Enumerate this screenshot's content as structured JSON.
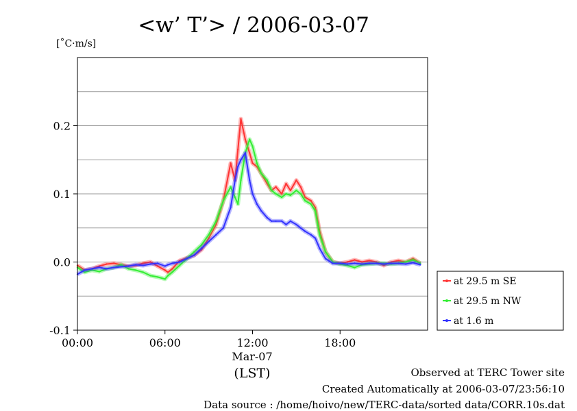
{
  "chart_data": {
    "type": "line",
    "title": "<w’ T’> / 2006-03-07",
    "ylabel_unit": "[˚C·m/s]",
    "xlabel": "(LST)",
    "x_date_label": "Mar-07",
    "xlim": [
      0,
      24
    ],
    "ylim": [
      -0.1,
      0.3
    ],
    "x_ticks": [
      0,
      6,
      12,
      18
    ],
    "x_tick_labels": [
      "00:00",
      "06:00",
      "12:00",
      "18:00"
    ],
    "y_ticks": [
      -0.1,
      0.0,
      0.1,
      0.2
    ],
    "y_tick_labels": [
      "-0.1",
      "0.0",
      "0.1",
      "0.2"
    ],
    "grid": true,
    "legend_position": "right",
    "series": [
      {
        "name": "at 29.5 m SE",
        "color": "#ff3333",
        "x": [
          0.0,
          0.5,
          1.0,
          1.5,
          2.0,
          2.5,
          3.0,
          3.5,
          4.0,
          4.5,
          5.0,
          5.5,
          6.0,
          6.2,
          6.5,
          7.0,
          7.5,
          8.0,
          8.5,
          9.0,
          9.5,
          10.0,
          10.5,
          10.8,
          11.0,
          11.2,
          11.5,
          11.8,
          12.0,
          12.3,
          12.6,
          13.0,
          13.3,
          13.6,
          14.0,
          14.3,
          14.6,
          15.0,
          15.3,
          15.6,
          16.0,
          16.3,
          16.6,
          17.0,
          17.5,
          18.0,
          18.5,
          19.0,
          19.5,
          20.0,
          20.5,
          21.0,
          21.5,
          22.0,
          22.5,
          23.0,
          23.5
        ],
        "values": [
          -0.005,
          -0.012,
          -0.01,
          -0.006,
          -0.003,
          -0.002,
          -0.004,
          -0.006,
          -0.005,
          -0.002,
          0.0,
          -0.006,
          -0.012,
          -0.015,
          -0.01,
          0.002,
          0.006,
          0.01,
          0.018,
          0.035,
          0.055,
          0.09,
          0.145,
          0.12,
          0.165,
          0.21,
          0.18,
          0.16,
          0.145,
          0.14,
          0.13,
          0.115,
          0.105,
          0.11,
          0.1,
          0.115,
          0.105,
          0.12,
          0.11,
          0.095,
          0.09,
          0.08,
          0.045,
          0.015,
          0.0,
          -0.002,
          0.0,
          0.003,
          0.0,
          0.002,
          0.0,
          -0.005,
          0.0,
          0.002,
          0.0,
          0.005,
          -0.002
        ]
      },
      {
        "name": "at 29.5 m NW",
        "color": "#33ee33",
        "x": [
          0.0,
          0.5,
          1.0,
          1.5,
          2.0,
          2.5,
          3.0,
          3.5,
          4.0,
          4.5,
          5.0,
          5.5,
          6.0,
          6.2,
          6.5,
          7.0,
          7.5,
          8.0,
          8.5,
          9.0,
          9.5,
          10.0,
          10.5,
          10.8,
          11.0,
          11.2,
          11.5,
          11.8,
          12.0,
          12.3,
          12.6,
          13.0,
          13.3,
          13.6,
          14.0,
          14.3,
          14.6,
          15.0,
          15.3,
          15.6,
          16.0,
          16.3,
          16.6,
          17.0,
          17.5,
          18.0,
          18.5,
          19.0,
          19.5,
          20.0,
          20.5,
          21.0,
          21.5,
          22.0,
          22.5,
          23.0,
          23.5
        ],
        "values": [
          -0.008,
          -0.015,
          -0.012,
          -0.014,
          -0.01,
          -0.008,
          -0.004,
          -0.01,
          -0.012,
          -0.015,
          -0.02,
          -0.022,
          -0.025,
          -0.02,
          -0.015,
          -0.005,
          0.005,
          0.015,
          0.025,
          0.04,
          0.06,
          0.09,
          0.11,
          0.095,
          0.085,
          0.12,
          0.16,
          0.18,
          0.17,
          0.145,
          0.13,
          0.12,
          0.105,
          0.1,
          0.095,
          0.1,
          0.098,
          0.105,
          0.1,
          0.09,
          0.085,
          0.075,
          0.04,
          0.015,
          0.0,
          -0.003,
          -0.005,
          -0.008,
          -0.004,
          -0.003,
          -0.002,
          -0.002,
          -0.003,
          -0.002,
          0.0,
          0.003,
          -0.002
        ]
      },
      {
        "name": "at 1.6 m",
        "color": "#3333ff",
        "x": [
          0.0,
          0.5,
          1.0,
          1.5,
          2.0,
          2.5,
          3.0,
          3.5,
          4.0,
          4.5,
          5.0,
          5.5,
          6.0,
          6.2,
          6.5,
          7.0,
          7.5,
          8.0,
          8.5,
          9.0,
          9.5,
          10.0,
          10.5,
          10.8,
          11.0,
          11.2,
          11.5,
          11.8,
          12.0,
          12.3,
          12.6,
          13.0,
          13.3,
          13.6,
          14.0,
          14.3,
          14.6,
          15.0,
          15.3,
          15.6,
          16.0,
          16.3,
          16.6,
          17.0,
          17.5,
          18.0,
          18.5,
          19.0,
          19.5,
          20.0,
          20.5,
          21.0,
          21.5,
          22.0,
          22.5,
          23.0,
          23.5
        ],
        "values": [
          -0.018,
          -0.012,
          -0.01,
          -0.008,
          -0.01,
          -0.008,
          -0.007,
          -0.006,
          -0.004,
          -0.005,
          -0.003,
          -0.002,
          -0.006,
          -0.004,
          -0.002,
          0.0,
          0.005,
          0.01,
          0.02,
          0.03,
          0.04,
          0.05,
          0.08,
          0.12,
          0.14,
          0.15,
          0.16,
          0.12,
          0.1,
          0.085,
          0.075,
          0.065,
          0.06,
          0.06,
          0.06,
          0.055,
          0.06,
          0.055,
          0.05,
          0.045,
          0.04,
          0.035,
          0.02,
          0.005,
          -0.002,
          -0.002,
          -0.003,
          -0.002,
          -0.003,
          -0.002,
          -0.002,
          -0.003,
          -0.002,
          -0.002,
          -0.003,
          -0.001,
          -0.004
        ]
      }
    ]
  },
  "footer": {
    "observed": "Observed at TERC Tower site",
    "created": "Created Automatically at 2006-03-07/23:56:10",
    "source": "Data source : /home/hoivo/new/TERC-data/sorted  data/CORR.10s.dat"
  }
}
